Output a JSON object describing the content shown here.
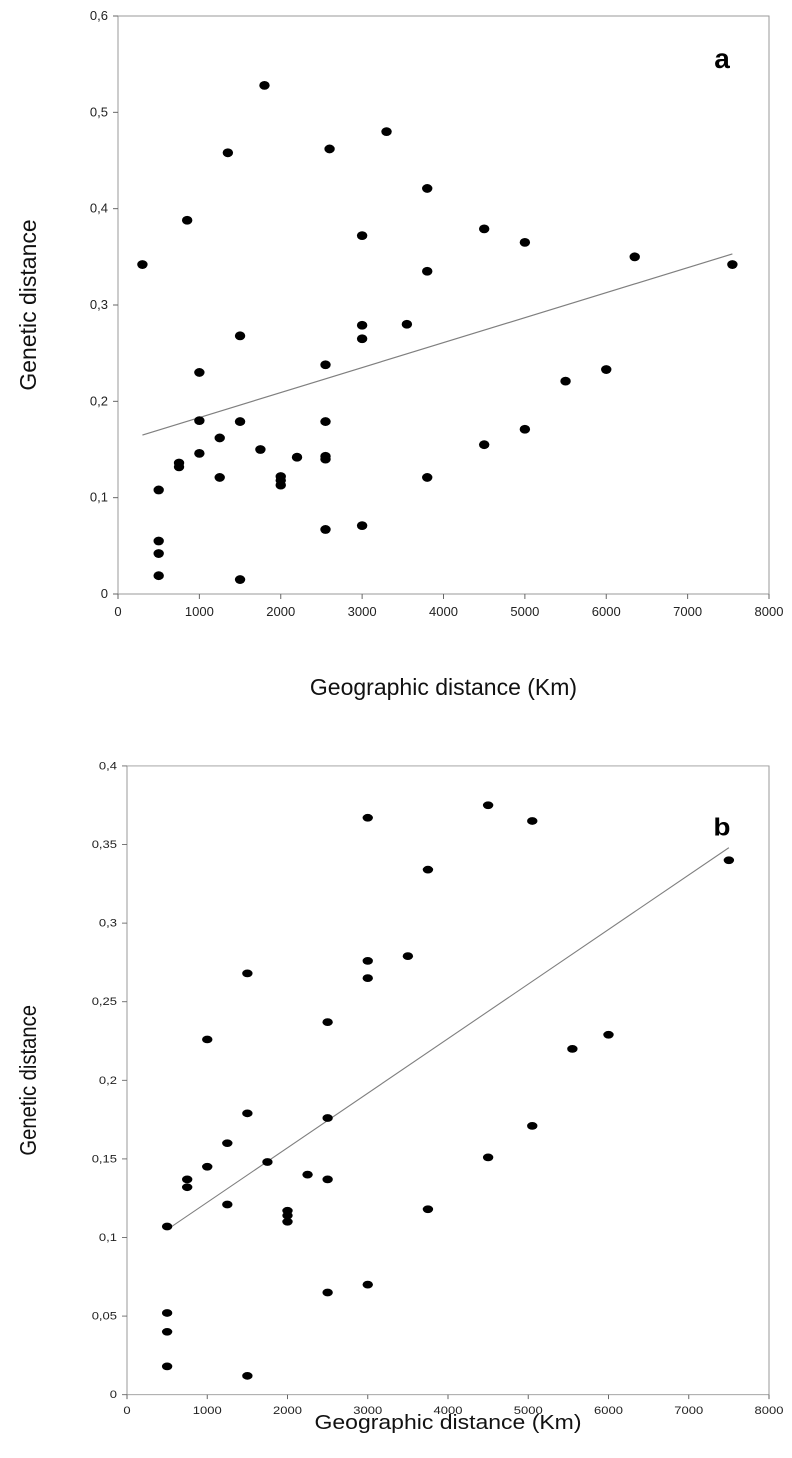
{
  "chart_data": [
    {
      "type": "scatter",
      "panel_label": "a",
      "xlabel": "Geographic distance (Km)",
      "ylabel": "Genetic distance",
      "xlim": [
        0,
        8000
      ],
      "ylim": [
        0,
        0.6
      ],
      "x_ticks": [
        "0",
        "1000",
        "2000",
        "3000",
        "4000",
        "5000",
        "6000",
        "7000",
        "8000"
      ],
      "y_ticks": [
        "0",
        "0,1",
        "0,2",
        "0,3",
        "0,4",
        "0,5",
        "0,6"
      ],
      "grid": false,
      "points": [
        [
          300,
          0.342
        ],
        [
          500,
          0.108
        ],
        [
          500,
          0.055
        ],
        [
          500,
          0.042
        ],
        [
          500,
          0.019
        ],
        [
          750,
          0.136
        ],
        [
          750,
          0.132
        ],
        [
          850,
          0.388
        ],
        [
          1000,
          0.23
        ],
        [
          1000,
          0.18
        ],
        [
          1000,
          0.146
        ],
        [
          1250,
          0.162
        ],
        [
          1250,
          0.121
        ],
        [
          1350,
          0.458
        ],
        [
          1500,
          0.268
        ],
        [
          1500,
          0.179
        ],
        [
          1500,
          0.015
        ],
        [
          1750,
          0.15
        ],
        [
          1800,
          0.528
        ],
        [
          2200,
          0.142
        ],
        [
          2000,
          0.122
        ],
        [
          2000,
          0.118
        ],
        [
          2000,
          0.113
        ],
        [
          2550,
          0.238
        ],
        [
          2550,
          0.179
        ],
        [
          2550,
          0.143
        ],
        [
          2550,
          0.14
        ],
        [
          2550,
          0.067
        ],
        [
          2600,
          0.462
        ],
        [
          3000,
          0.372
        ],
        [
          3000,
          0.279
        ],
        [
          3000,
          0.265
        ],
        [
          3000,
          0.071
        ],
        [
          3300,
          0.48
        ],
        [
          3550,
          0.28
        ],
        [
          3800,
          0.421
        ],
        [
          3800,
          0.335
        ],
        [
          3800,
          0.121
        ],
        [
          4500,
          0.379
        ],
        [
          4500,
          0.155
        ],
        [
          5000,
          0.365
        ],
        [
          5000,
          0.171
        ],
        [
          5500,
          0.221
        ],
        [
          6000,
          0.233
        ],
        [
          6350,
          0.35
        ],
        [
          7550,
          0.342
        ]
      ],
      "trendline": {
        "x": [
          300,
          7550
        ],
        "y": [
          0.165,
          0.353
        ]
      }
    },
    {
      "type": "scatter",
      "panel_label": "b",
      "xlabel": "Geographic distance (Km)",
      "ylabel": "Genetic distance",
      "xlim": [
        0,
        8000
      ],
      "ylim": [
        0,
        0.4
      ],
      "x_ticks": [
        "0",
        "1000",
        "2000",
        "3000",
        "4000",
        "5000",
        "6000",
        "7000",
        "8000"
      ],
      "y_ticks": [
        "0",
        "0,05",
        "0,1",
        "0,15",
        "0,2",
        "0,25",
        "0,3",
        "0,35",
        "0,4"
      ],
      "grid": false,
      "points": [
        [
          500,
          0.107
        ],
        [
          500,
          0.052
        ],
        [
          500,
          0.04
        ],
        [
          500,
          0.018
        ],
        [
          750,
          0.137
        ],
        [
          750,
          0.132
        ],
        [
          1000,
          0.226
        ],
        [
          1000,
          0.145
        ],
        [
          1250,
          0.16
        ],
        [
          1250,
          0.121
        ],
        [
          1500,
          0.268
        ],
        [
          1500,
          0.179
        ],
        [
          1500,
          0.012
        ],
        [
          1750,
          0.148
        ],
        [
          2000,
          0.117
        ],
        [
          2000,
          0.114
        ],
        [
          2000,
          0.11
        ],
        [
          2250,
          0.14
        ],
        [
          2500,
          0.237
        ],
        [
          2500,
          0.176
        ],
        [
          2500,
          0.137
        ],
        [
          2500,
          0.065
        ],
        [
          3000,
          0.367
        ],
        [
          3000,
          0.276
        ],
        [
          3000,
          0.265
        ],
        [
          3000,
          0.07
        ],
        [
          3500,
          0.279
        ],
        [
          3750,
          0.334
        ],
        [
          3750,
          0.118
        ],
        [
          4500,
          0.375
        ],
        [
          4500,
          0.151
        ],
        [
          5050,
          0.365
        ],
        [
          5050,
          0.171
        ],
        [
          5550,
          0.22
        ],
        [
          6000,
          0.229
        ],
        [
          7500,
          0.34
        ]
      ],
      "trendline": {
        "x": [
          500,
          7500
        ],
        "y": [
          0.105,
          0.348
        ]
      }
    }
  ]
}
